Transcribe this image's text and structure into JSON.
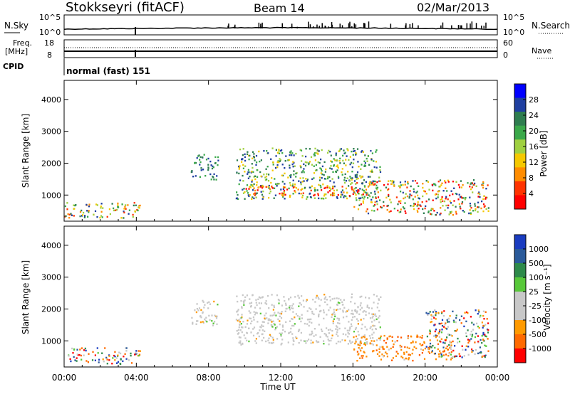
{
  "header": {
    "station": "Stokkseyri (fitACF)",
    "beam": "Beam 14",
    "date": "02/Mar/2013"
  },
  "noise_panel": {
    "left_label": "N.Sky",
    "right_label": "N.Search",
    "left_ticks": [
      "10^5",
      "10^0"
    ],
    "right_ticks": [
      "10^5",
      "10^0"
    ]
  },
  "freq_panel": {
    "left_label_1": "Freq.",
    "left_label_2": "[MHz]",
    "right_label": "Nave",
    "left_ticks": [
      "18",
      "8"
    ],
    "right_ticks": [
      "60",
      "0"
    ],
    "cpid_label": "CPID",
    "cpid_text": "normal (fast) 151"
  },
  "colors": {
    "power_scale": [
      "#0000ff",
      "#1f3fa0",
      "#2e7d4f",
      "#3aa84a",
      "#9fd040",
      "#f5c800",
      "#ff8c00",
      "#ff3300",
      "#ff0000"
    ],
    "velocity_scale": [
      "#1a3cc0",
      "#2a5a9a",
      "#2e8a4a",
      "#58c83a",
      "#c8c8c8",
      "#c8c8c8",
      "#ff9a00",
      "#ff6a00",
      "#ff0000"
    ]
  },
  "chart_data": [
    {
      "type": "heatmap",
      "quantity": "power",
      "ylabel": "Slant Range [km]",
      "ylim": [
        180,
        4600
      ],
      "yticks": [
        "1000",
        "2000",
        "3000",
        "4000"
      ],
      "xlim": [
        "00:00",
        "24:00"
      ],
      "colorbar_label": "Power [dB]",
      "colorbar_ticks": [
        "4",
        "8",
        "12",
        "16",
        "20",
        "24",
        "28"
      ],
      "echo_regions": [
        {
          "t": [
            0.0,
            4.2
          ],
          "r": [
            300,
            800
          ],
          "level": "mixed"
        },
        {
          "t": [
            7.0,
            8.5
          ],
          "r": [
            1500,
            2300
          ],
          "level": "low"
        },
        {
          "t": [
            9.5,
            17.5
          ],
          "r": [
            900,
            2500
          ],
          "level": "medium"
        },
        {
          "t": [
            10.0,
            16.2
          ],
          "r": [
            1000,
            1300
          ],
          "level": "high"
        },
        {
          "t": [
            16.0,
            23.5
          ],
          "r": [
            400,
            1500
          ],
          "level": "medium-high"
        }
      ]
    },
    {
      "type": "heatmap",
      "quantity": "velocity",
      "ylabel": "Slant Range [km]",
      "ylim": [
        180,
        4600
      ],
      "yticks": [
        "1000",
        "2000",
        "3000",
        "4000"
      ],
      "xlabel": "Time UT",
      "xticks": [
        "00:00",
        "04:00",
        "08:00",
        "12:00",
        "16:00",
        "20:00",
        "00:00"
      ],
      "colorbar_label": "Velocity [m s⁻¹]",
      "colorbar_ticks": [
        "1000",
        "500",
        "100",
        "25",
        "-25",
        "-100",
        "-500",
        "-1000"
      ],
      "echo_regions": [
        {
          "t": [
            0.0,
            4.2
          ],
          "r": [
            300,
            800
          ],
          "velocity": "mixed"
        },
        {
          "t": [
            7.0,
            8.5
          ],
          "r": [
            1500,
            2300
          ],
          "velocity": "near-zero"
        },
        {
          "t": [
            9.5,
            17.5
          ],
          "r": [
            900,
            2500
          ],
          "velocity": "near-zero"
        },
        {
          "t": [
            16.0,
            21.5
          ],
          "r": [
            400,
            1200
          ],
          "velocity": "negative"
        },
        {
          "t": [
            20.0,
            23.5
          ],
          "r": [
            500,
            2000
          ],
          "velocity": "mixed"
        }
      ]
    }
  ]
}
